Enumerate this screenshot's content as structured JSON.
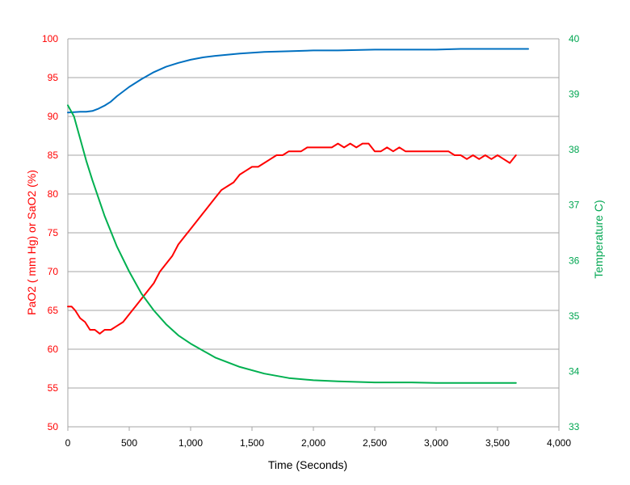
{
  "chart_data": {
    "type": "line",
    "title": "",
    "xlabel": "Time (Seconds)",
    "ylabel_left": "PaO2 ( mm Hg) or SaO2 (%)",
    "ylabel_right": "Temperature C)",
    "xlim": [
      0,
      4000
    ],
    "ylim_left": [
      50,
      100
    ],
    "ylim_right": [
      33,
      40
    ],
    "grid": true,
    "legend": "none",
    "colors": {
      "left_axis": "#ff0000",
      "right_axis": "#00a651",
      "x_axis": "#000000",
      "grid": "#a6a6a6"
    },
    "x_ticks": [
      "0",
      "500",
      "1,000",
      "1,500",
      "2,000",
      "2,500",
      "3,000",
      "3,500",
      "4,000"
    ],
    "y_left_ticks": [
      "50",
      "55",
      "60",
      "65",
      "70",
      "75",
      "80",
      "85",
      "90",
      "95",
      "100"
    ],
    "y_right_ticks": [
      "33",
      "34",
      "35",
      "36",
      "37",
      "38",
      "39",
      "40"
    ],
    "series": [
      {
        "axis": "left",
        "color": "#0070c0",
        "x": [
          0,
          100,
          150,
          200,
          250,
          300,
          350,
          400,
          500,
          600,
          700,
          800,
          900,
          1000,
          1100,
          1200,
          1400,
          1600,
          1800,
          2000,
          2200,
          2500,
          2800,
          3000,
          3200,
          3500,
          3750
        ],
        "y": [
          90.5,
          90.6,
          90.6,
          90.7,
          91.0,
          91.4,
          91.9,
          92.6,
          93.8,
          94.8,
          95.7,
          96.4,
          96.9,
          97.3,
          97.6,
          97.8,
          98.1,
          98.3,
          98.4,
          98.5,
          98.5,
          98.6,
          98.6,
          98.6,
          98.7,
          98.7,
          98.7
        ]
      },
      {
        "axis": "left",
        "color": "#ff0000",
        "x": [
          0,
          30,
          60,
          100,
          140,
          180,
          220,
          260,
          300,
          350,
          400,
          450,
          500,
          550,
          600,
          650,
          700,
          750,
          800,
          850,
          900,
          950,
          1000,
          1050,
          1100,
          1150,
          1200,
          1250,
          1300,
          1350,
          1400,
          1450,
          1500,
          1550,
          1600,
          1650,
          1700,
          1750,
          1800,
          1850,
          1900,
          1950,
          2000,
          2050,
          2100,
          2150,
          2200,
          2250,
          2300,
          2350,
          2400,
          2450,
          2500,
          2550,
          2600,
          2650,
          2700,
          2750,
          2800,
          2850,
          2900,
          2950,
          3000,
          3050,
          3100,
          3150,
          3200,
          3250,
          3300,
          3350,
          3400,
          3450,
          3500,
          3550,
          3600,
          3650
        ],
        "y": [
          65.5,
          65.5,
          65,
          64,
          63.5,
          62.5,
          62.5,
          62,
          62.5,
          62.5,
          63,
          63.5,
          64.5,
          65.5,
          66.5,
          67.5,
          68.5,
          70,
          71,
          72,
          73.5,
          74.5,
          75.5,
          76.5,
          77.5,
          78.5,
          79.5,
          80.5,
          81,
          81.5,
          82.5,
          83,
          83.5,
          83.5,
          84,
          84.5,
          85,
          85,
          85.5,
          85.5,
          85.5,
          86,
          86,
          86,
          86,
          86,
          86.5,
          86,
          86.5,
          86,
          86.5,
          86.5,
          85.5,
          85.5,
          86,
          85.5,
          86,
          85.5,
          85.5,
          85.5,
          85.5,
          85.5,
          85.5,
          85.5,
          85.5,
          85,
          85,
          84.5,
          85,
          84.5,
          85,
          84.5,
          85,
          84.5,
          84,
          85
        ]
      },
      {
        "axis": "right",
        "color": "#00b050",
        "x": [
          0,
          50,
          100,
          150,
          200,
          300,
          400,
          500,
          600,
          700,
          800,
          900,
          1000,
          1200,
          1400,
          1600,
          1800,
          2000,
          2200,
          2500,
          2800,
          3000,
          3300,
          3650
        ],
        "y": [
          38.8,
          38.6,
          38.2,
          37.8,
          37.45,
          36.8,
          36.25,
          35.8,
          35.4,
          35.1,
          34.85,
          34.65,
          34.5,
          34.25,
          34.08,
          33.96,
          33.88,
          33.84,
          33.82,
          33.8,
          33.8,
          33.79,
          33.79,
          33.79
        ]
      }
    ]
  }
}
